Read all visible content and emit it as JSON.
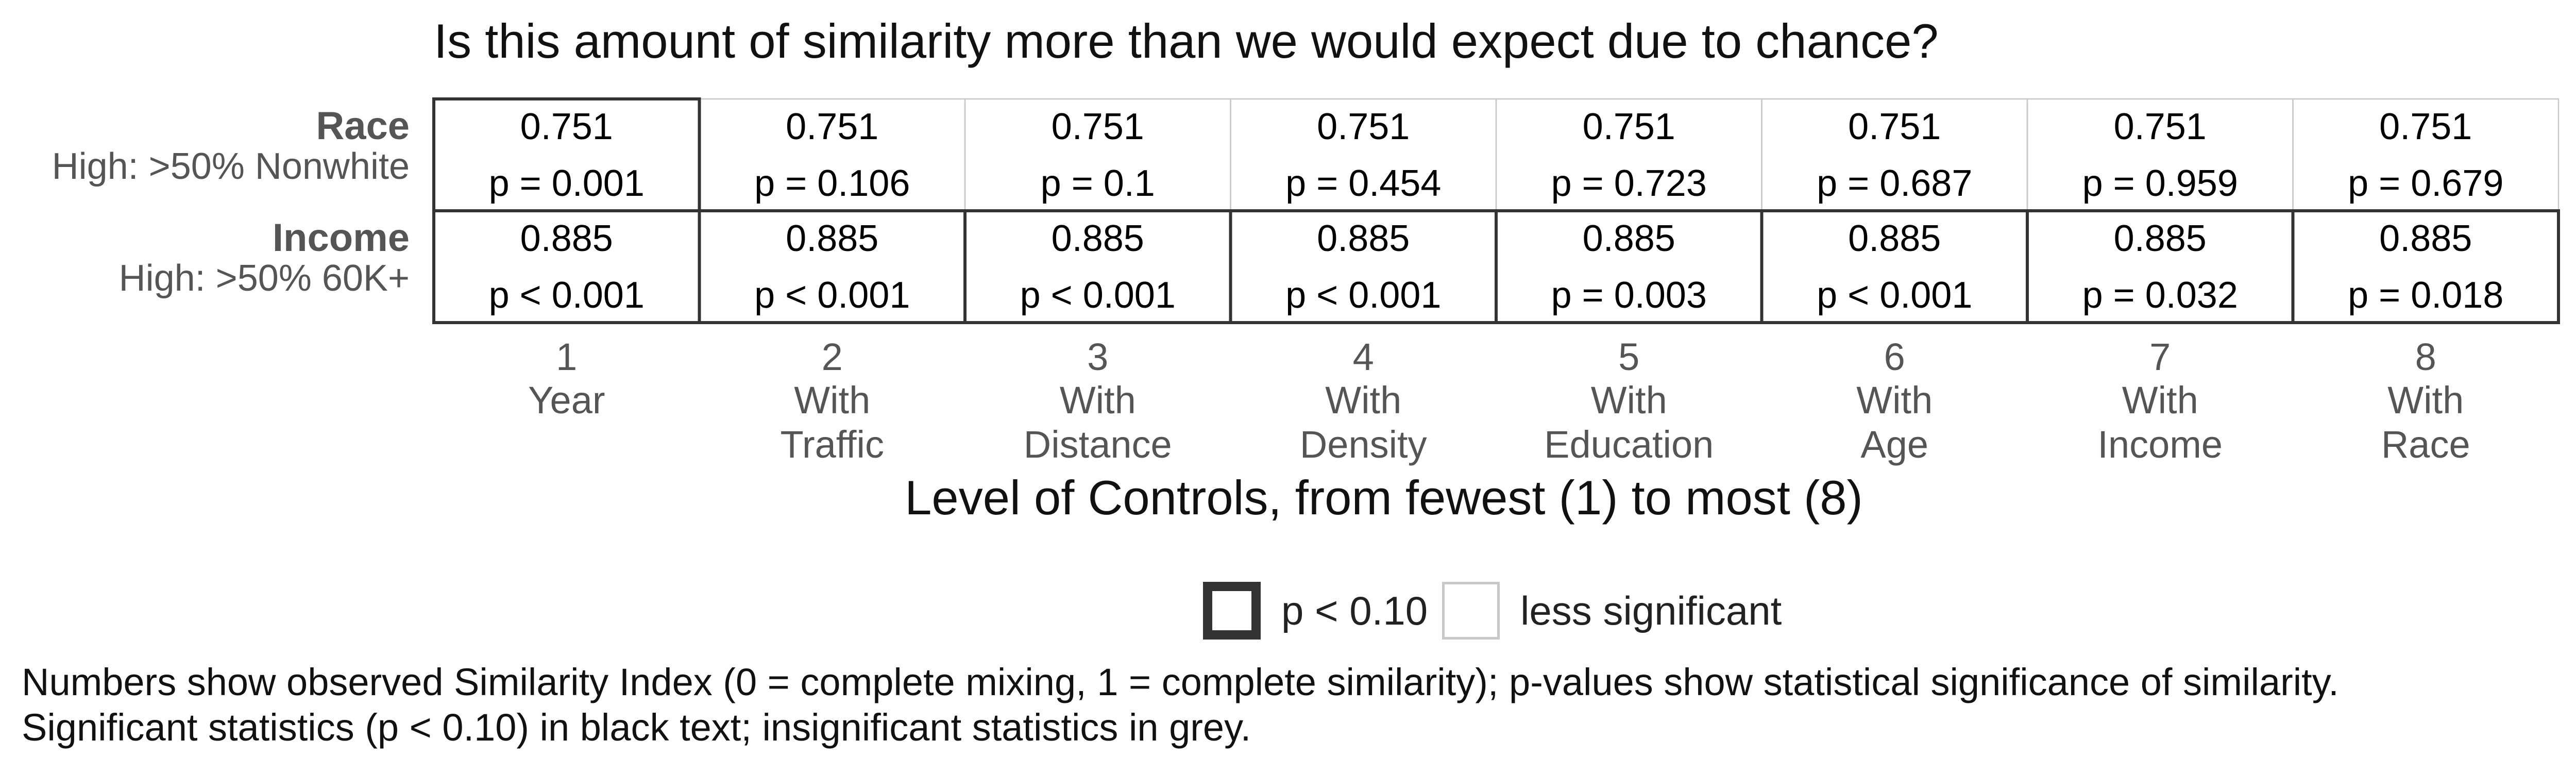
{
  "chart_data": {
    "type": "table",
    "title": "Is this amount of similarity more than we would expect due to chance?",
    "xlabel": "Level of Controls, from fewest (1) to most (8)",
    "columns": [
      {
        "number": "1",
        "line1": "Year",
        "line2": ""
      },
      {
        "number": "2",
        "line1": "With",
        "line2": "Traffic"
      },
      {
        "number": "3",
        "line1": "With",
        "line2": "Distance"
      },
      {
        "number": "4",
        "line1": "With",
        "line2": "Density"
      },
      {
        "number": "5",
        "line1": "With",
        "line2": "Education"
      },
      {
        "number": "6",
        "line1": "With",
        "line2": "Age"
      },
      {
        "number": "7",
        "line1": "With",
        "line2": "Income"
      },
      {
        "number": "8",
        "line1": "With",
        "line2": "Race"
      }
    ],
    "rows": [
      {
        "label": "Race",
        "sublabel": "High: >50% Nonwhite",
        "values": [
          "0.751",
          "0.751",
          "0.751",
          "0.751",
          "0.751",
          "0.751",
          "0.751",
          "0.751"
        ],
        "pvalues": [
          "p = 0.001",
          "p = 0.106",
          "p = 0.1",
          "p = 0.454",
          "p = 0.723",
          "p = 0.687",
          "p = 0.959",
          "p = 0.679"
        ],
        "significant": [
          true,
          false,
          false,
          false,
          false,
          false,
          false,
          false
        ]
      },
      {
        "label": "Income",
        "sublabel": "High: >50% 60K+",
        "values": [
          "0.885",
          "0.885",
          "0.885",
          "0.885",
          "0.885",
          "0.885",
          "0.885",
          "0.885"
        ],
        "pvalues": [
          "p < 0.001",
          "p < 0.001",
          "p < 0.001",
          "p < 0.001",
          "p = 0.003",
          "p < 0.001",
          "p = 0.032",
          "p = 0.018"
        ],
        "significant": [
          true,
          true,
          true,
          true,
          true,
          true,
          true,
          true
        ]
      }
    ],
    "legend": [
      {
        "label": "p < 0.10",
        "style": "thick-dark-border"
      },
      {
        "label": "less significant",
        "style": "thin-grey-border"
      }
    ],
    "colors": {
      "significant_border": "#333333",
      "insignificant_border": "#c8c8c8",
      "text": "#000000",
      "axis_text": "#555555"
    }
  },
  "notes": {
    "line1": "Numbers show observed Similarity Index (0 = complete mixing, 1 = complete similarity); p-values show statistical significance of similarity.",
    "line2": "Significant statistics (p < 0.10) in black text; insignificant statistics in grey."
  }
}
